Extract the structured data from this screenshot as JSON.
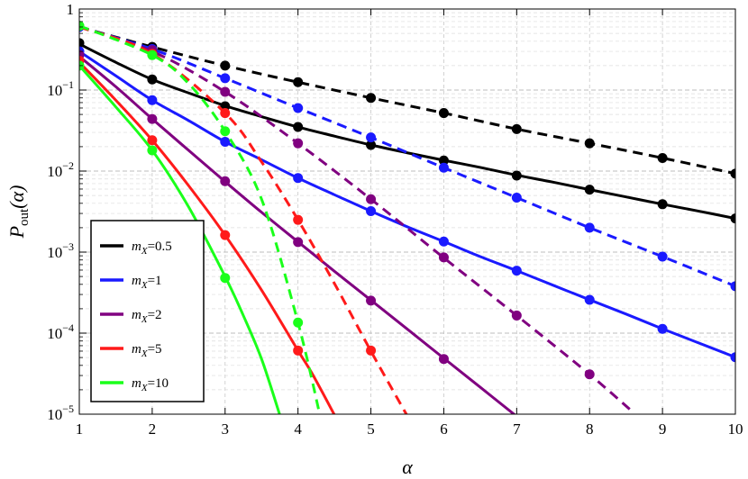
{
  "chart_data": {
    "type": "line",
    "title": "",
    "xlabel": "α",
    "ylabel_main": "P",
    "ylabel_sub": "out",
    "ylabel_arg": "(α)",
    "xlim": [
      1,
      10
    ],
    "ylim": [
      1e-05,
      1
    ],
    "yscale": "log",
    "grid": true,
    "legend_position": "bottom-left",
    "x_ticks": [
      1,
      2,
      3,
      4,
      5,
      6,
      7,
      8,
      9,
      10
    ],
    "y_ticks": [
      {
        "value": 1,
        "base": "1",
        "exp": ""
      },
      {
        "value": 0.1,
        "base": "10",
        "exp": "−1"
      },
      {
        "value": 0.01,
        "base": "10",
        "exp": "−2"
      },
      {
        "value": 0.001,
        "base": "10",
        "exp": "−3"
      },
      {
        "value": 0.0001,
        "base": "10",
        "exp": "−4"
      },
      {
        "value": 1e-05,
        "base": "10",
        "exp": "−5"
      }
    ],
    "legend": [
      {
        "m": "m",
        "sub": "X",
        "value": "=0.5",
        "color": "#000000"
      },
      {
        "m": "m",
        "sub": "X",
        "value": "=1",
        "color": "#1a1aff"
      },
      {
        "m": "m",
        "sub": "X",
        "value": "=2",
        "color": "#800080"
      },
      {
        "m": "m",
        "sub": "X",
        "value": "=5",
        "color": "#ff1a1a"
      },
      {
        "m": "m",
        "sub": "X",
        "value": "=10",
        "color": "#1aff1a"
      }
    ],
    "series": [
      {
        "legend_index": 0,
        "style": "solid",
        "color": "#000000",
        "curve": {
          "x": [
            1,
            1.5,
            2,
            2.5,
            3,
            3.5,
            4,
            4.5,
            5,
            5.5,
            6,
            6.5,
            7,
            7.5,
            8,
            8.5,
            9,
            9.5,
            10
          ],
          "y": [
            0.37,
            0.22,
            0.135,
            0.092,
            0.064,
            0.047,
            0.035,
            0.027,
            0.021,
            0.0168,
            0.0136,
            0.0111,
            0.0089,
            0.0073,
            0.0059,
            0.0048,
            0.0039,
            0.0032,
            0.0026
          ]
        },
        "points": {
          "x": [
            1,
            2,
            3,
            4,
            5,
            6,
            7,
            8,
            9,
            10
          ],
          "y": [
            0.38,
            0.135,
            0.063,
            0.035,
            0.021,
            0.0135,
            0.0088,
            0.0059,
            0.0039,
            0.0026
          ]
        }
      },
      {
        "legend_index": 0,
        "style": "dashed",
        "color": "#000000",
        "curve": {
          "x": [
            1,
            2,
            3,
            4,
            5,
            6,
            7,
            8,
            9,
            10
          ],
          "y": [
            0.6,
            0.34,
            0.2,
            0.125,
            0.08,
            0.052,
            0.033,
            0.022,
            0.0145,
            0.0093
          ]
        },
        "points": {
          "x": [
            1,
            2,
            3,
            4,
            5,
            6,
            7,
            8,
            9,
            10
          ],
          "y": [
            0.61,
            0.34,
            0.2,
            0.125,
            0.08,
            0.052,
            0.033,
            0.022,
            0.0145,
            0.0093
          ]
        }
      },
      {
        "legend_index": 1,
        "style": "solid",
        "color": "#1a1aff",
        "curve": {
          "x": [
            1,
            1.5,
            2,
            2.5,
            3,
            3.5,
            4,
            4.5,
            5,
            5.5,
            6,
            6.5,
            7,
            7.5,
            8,
            8.5,
            9,
            9.5,
            10
          ],
          "y": [
            0.3,
            0.15,
            0.075,
            0.042,
            0.023,
            0.0138,
            0.0082,
            0.0051,
            0.0032,
            0.00205,
            0.00135,
            0.00088,
            0.00059,
            0.00039,
            0.000258,
            0.000172,
            0.000113,
            7.55e-05,
            5.05e-05
          ]
        },
        "points": {
          "x": [
            1,
            2,
            3,
            4,
            5,
            6,
            7,
            8,
            9,
            10
          ],
          "y": [
            0.3,
            0.075,
            0.023,
            0.0082,
            0.0032,
            0.00135,
            0.00059,
            0.000258,
            0.000113,
            5.05e-05
          ]
        }
      },
      {
        "legend_index": 1,
        "style": "dashed",
        "color": "#1a1aff",
        "curve": {
          "x": [
            1,
            2,
            3,
            4,
            5,
            6,
            7,
            8,
            9,
            10
          ],
          "y": [
            0.6,
            0.32,
            0.14,
            0.06,
            0.026,
            0.011,
            0.0047,
            0.002,
            0.00088,
            0.00038
          ]
        },
        "points": {
          "x": [
            1,
            2,
            3,
            4,
            5,
            6,
            7,
            8,
            9,
            10
          ],
          "y": [
            0.6,
            0.32,
            0.14,
            0.06,
            0.026,
            0.011,
            0.0047,
            0.002,
            0.00088,
            0.00038
          ]
        }
      },
      {
        "legend_index": 2,
        "style": "solid",
        "color": "#800080",
        "curve": {
          "x": [
            1,
            1.5,
            2,
            2.5,
            3,
            3.5,
            4,
            4.5,
            5,
            5.5,
            6,
            6.5,
            7,
            7.2
          ],
          "y": [
            0.26,
            0.11,
            0.044,
            0.018,
            0.0074,
            0.0031,
            0.00134,
            0.00058,
            0.000255,
            0.000112,
            4.9e-05,
            2.15e-05,
            9.4e-06,
            6.9e-06
          ]
        },
        "points": {
          "x": [
            1,
            2,
            3,
            4,
            5,
            6
          ],
          "y": [
            0.27,
            0.044,
            0.0075,
            0.00133,
            0.000252,
            4.8e-05
          ]
        }
      },
      {
        "legend_index": 2,
        "style": "dashed",
        "color": "#800080",
        "curve": {
          "x": [
            1,
            2,
            3,
            4,
            5,
            6,
            7,
            8,
            8.6
          ],
          "y": [
            0.6,
            0.3,
            0.095,
            0.022,
            0.0045,
            0.00085,
            0.000165,
            3.1e-05,
            1.05e-05
          ]
        },
        "points": {
          "x": [
            2,
            3,
            4,
            5,
            6,
            7,
            8
          ],
          "y": [
            0.31,
            0.095,
            0.022,
            0.0045,
            0.00086,
            0.000165,
            3.1e-05
          ]
        }
      },
      {
        "legend_index": 3,
        "style": "solid",
        "color": "#ff1a1a",
        "curve": {
          "x": [
            1,
            1.5,
            2,
            2.5,
            3,
            3.5,
            4,
            4.2,
            4.5
          ],
          "y": [
            0.22,
            0.075,
            0.024,
            0.0066,
            0.00162,
            0.00034,
            6.1e-05,
            3.1e-05,
            9.8e-06
          ]
        },
        "points": {
          "x": [
            1,
            2,
            3,
            4
          ],
          "y": [
            0.23,
            0.024,
            0.00162,
            6.1e-05
          ]
        }
      },
      {
        "legend_index": 3,
        "style": "dashed",
        "color": "#ff1a1a",
        "curve": {
          "x": [
            1,
            2,
            3,
            3.5,
            4,
            4.5,
            5,
            5.5
          ],
          "y": [
            0.6,
            0.28,
            0.052,
            0.013,
            0.0025,
            0.00041,
            6e-05,
            9.5e-06
          ]
        },
        "points": {
          "x": [
            2,
            3,
            4,
            5
          ],
          "y": [
            0.28,
            0.052,
            0.0025,
            6.1e-05
          ]
        }
      },
      {
        "legend_index": 4,
        "style": "solid",
        "color": "#1aff1a",
        "curve": {
          "x": [
            1,
            1.5,
            2,
            2.5,
            3,
            3.25,
            3.5,
            3.75
          ],
          "y": [
            0.2,
            0.062,
            0.018,
            0.0036,
            0.0005,
            0.000165,
            4.8e-05,
            9.8e-06
          ]
        },
        "points": {
          "x": [
            1,
            2,
            3
          ],
          "y": [
            0.2,
            0.018,
            0.00048
          ]
        }
      },
      {
        "legend_index": 4,
        "style": "dashed",
        "color": "#1aff1a",
        "curve": {
          "x": [
            1,
            2,
            2.5,
            3,
            3.5,
            4,
            4.3
          ],
          "y": [
            0.62,
            0.27,
            0.12,
            0.031,
            0.0045,
            0.000135,
            9.8e-06
          ]
        },
        "points": {
          "x": [
            1,
            2,
            3,
            4
          ],
          "y": [
            0.62,
            0.27,
            0.031,
            0.000135
          ]
        }
      }
    ]
  }
}
